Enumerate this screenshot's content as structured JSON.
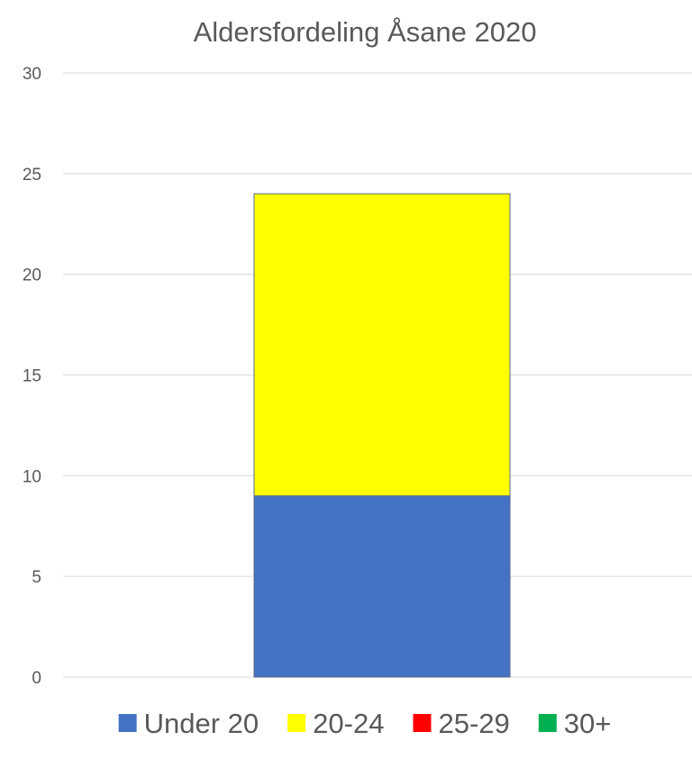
{
  "chart_data": {
    "type": "bar",
    "stacked": true,
    "title": "Aldersfordeling Åsane 2020",
    "xlabel": "",
    "ylabel": "",
    "categories": [
      ""
    ],
    "ylim": [
      0,
      30
    ],
    "yticks": [
      "0",
      "5",
      "10",
      "15",
      "20",
      "25",
      "30"
    ],
    "grid": true,
    "legend_position": "bottom",
    "series": [
      {
        "name": "Under 20",
        "values": [
          9
        ],
        "color": "#4472C4"
      },
      {
        "name": "20-24",
        "values": [
          15
        ],
        "color": "#FFFF00"
      },
      {
        "name": "25-29",
        "values": [
          0
        ],
        "color": "#FF0000"
      },
      {
        "name": "30+",
        "values": [
          0
        ],
        "color": "#00B050"
      }
    ]
  }
}
